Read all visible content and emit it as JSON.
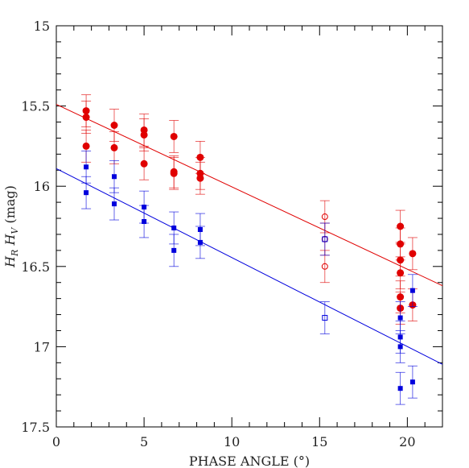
{
  "chart_data": {
    "type": "scatter",
    "title": "",
    "xlabel": "PHASE ANGLE (°)",
    "ylabel": "H_R  H_V  (mag)",
    "ylabel_parts": [
      "H",
      "R",
      "H",
      "V",
      "(mag)"
    ],
    "xlim": [
      0,
      22
    ],
    "ylim": [
      17.5,
      15
    ],
    "y_inverted": true,
    "grid": false,
    "legend": "none",
    "x_ticks": [
      0,
      5,
      10,
      15,
      20
    ],
    "x_tick_labels": [
      "0",
      "5",
      "10",
      "15",
      "20"
    ],
    "y_ticks": [
      15,
      15.5,
      16,
      16.5,
      17,
      17.5
    ],
    "y_tick_labels": [
      "15",
      "15.5",
      "16",
      "16.5",
      "17",
      "17.5"
    ],
    "series": [
      {
        "color": "#e00000",
        "marker": "circle",
        "points": [
          {
            "x": 1.7,
            "y": 15.53,
            "err": 0.1
          },
          {
            "x": 1.7,
            "y": 15.57,
            "err": 0.1
          },
          {
            "x": 1.7,
            "y": 15.75,
            "err": 0.1
          },
          {
            "x": 3.3,
            "y": 15.62,
            "err": 0.1
          },
          {
            "x": 3.3,
            "y": 15.76,
            "err": 0.1
          },
          {
            "x": 5.0,
            "y": 15.65,
            "err": 0.1
          },
          {
            "x": 5.0,
            "y": 15.68,
            "err": 0.1
          },
          {
            "x": 5.0,
            "y": 15.86,
            "err": 0.1
          },
          {
            "x": 6.7,
            "y": 15.69,
            "err": 0.1
          },
          {
            "x": 6.7,
            "y": 15.91,
            "err": 0.1
          },
          {
            "x": 6.7,
            "y": 15.92,
            "err": 0.1
          },
          {
            "x": 8.2,
            "y": 15.82,
            "err": 0.1
          },
          {
            "x": 8.2,
            "y": 15.92,
            "err": 0.1
          },
          {
            "x": 8.2,
            "y": 15.95,
            "err": 0.1
          },
          {
            "x": 19.6,
            "y": 16.25,
            "err": 0.1
          },
          {
            "x": 19.6,
            "y": 16.36,
            "err": 0.1
          },
          {
            "x": 19.6,
            "y": 16.46,
            "err": 0.1
          },
          {
            "x": 19.6,
            "y": 16.54,
            "err": 0.1
          },
          {
            "x": 19.6,
            "y": 16.69,
            "err": 0.1
          },
          {
            "x": 19.6,
            "y": 16.76,
            "err": 0.1
          },
          {
            "x": 20.3,
            "y": 16.42,
            "err": 0.1
          },
          {
            "x": 20.3,
            "y": 16.74,
            "err": 0.1
          }
        ]
      },
      {
        "color": "#e00000",
        "marker": "open-circle",
        "points": [
          {
            "x": 15.3,
            "y": 16.19,
            "err": 0.1
          },
          {
            "x": 15.3,
            "y": 16.33,
            "err": 0.1
          },
          {
            "x": 15.3,
            "y": 16.5,
            "err": 0.1
          }
        ]
      },
      {
        "color": "#0000dd",
        "marker": "square",
        "points": [
          {
            "x": 1.7,
            "y": 15.88,
            "err": 0.1
          },
          {
            "x": 1.7,
            "y": 16.04,
            "err": 0.1
          },
          {
            "x": 3.3,
            "y": 15.94,
            "err": 0.1
          },
          {
            "x": 3.3,
            "y": 16.11,
            "err": 0.1
          },
          {
            "x": 5.0,
            "y": 16.13,
            "err": 0.1
          },
          {
            "x": 5.0,
            "y": 16.22,
            "err": 0.1
          },
          {
            "x": 6.7,
            "y": 16.26,
            "err": 0.1
          },
          {
            "x": 6.7,
            "y": 16.4,
            "err": 0.1
          },
          {
            "x": 8.2,
            "y": 16.27,
            "err": 0.1
          },
          {
            "x": 8.2,
            "y": 16.35,
            "err": 0.1
          },
          {
            "x": 19.6,
            "y": 16.82,
            "err": 0.1
          },
          {
            "x": 19.6,
            "y": 16.94,
            "err": 0.1
          },
          {
            "x": 19.6,
            "y": 17.0,
            "err": 0.1
          },
          {
            "x": 19.6,
            "y": 17.26,
            "err": 0.1
          },
          {
            "x": 20.3,
            "y": 16.65,
            "err": 0.1
          },
          {
            "x": 20.3,
            "y": 17.22,
            "err": 0.1
          }
        ]
      },
      {
        "color": "#0000dd",
        "marker": "open-square",
        "points": [
          {
            "x": 15.3,
            "y": 16.33,
            "err": 0.1
          },
          {
            "x": 15.3,
            "y": 16.82,
            "err": 0.1
          }
        ]
      }
    ],
    "fit_lines": [
      {
        "color": "#e00000",
        "x": [
          0,
          22
        ],
        "y": [
          15.49,
          16.62
        ]
      },
      {
        "color": "#0000dd",
        "x": [
          0,
          22
        ],
        "y": [
          15.89,
          17.11
        ]
      }
    ]
  }
}
